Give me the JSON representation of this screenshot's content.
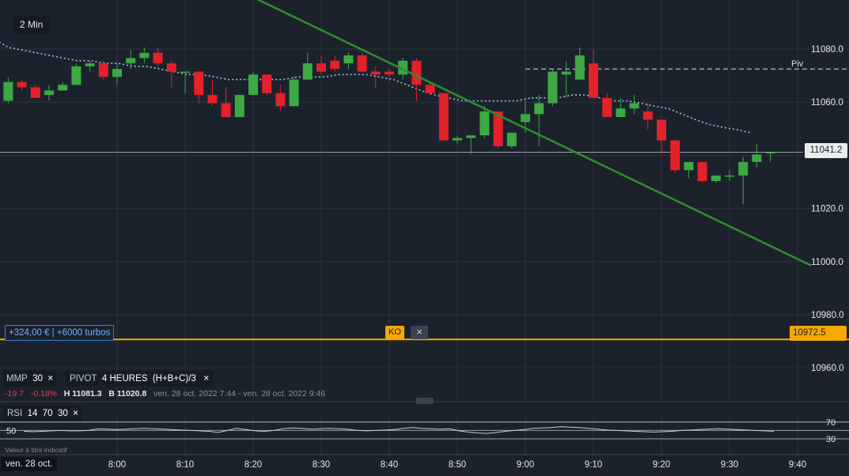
{
  "timeframe": "2 Min",
  "colors": {
    "up": "#3ea843",
    "down": "#e3212a",
    "ma": "#9cc3e6",
    "trend": "#2e8b30",
    "ko": "#f5a800"
  },
  "chart_data": {
    "type": "candlestick",
    "y_axis": {
      "ticks": [
        11080.0,
        11060.0,
        11040.0,
        11020.0,
        11000.0,
        10980.0,
        10960.0
      ],
      "tick_labels": [
        "11080.0",
        "11060.0",
        "",
        "11020.0",
        "11000.0",
        "10980.0",
        "10960.0"
      ],
      "range": [
        10950,
        11097
      ],
      "position": "right"
    },
    "x_axis": {
      "tick_labels": [
        "8:00",
        "8:10",
        "8:20",
        "8:30",
        "8:40",
        "8:50",
        "9:00",
        "9:10",
        "9:20",
        "9:30",
        "9:40"
      ],
      "start_label": "ven. 28 oct."
    },
    "candles": [
      {
        "t": "7:44",
        "o": 11060.5,
        "h": 11069.5,
        "l": 11059.6,
        "c": 11067.6
      },
      {
        "t": "7:46",
        "o": 11067.6,
        "h": 11068.5,
        "l": 11064.4,
        "c": 11065.6
      },
      {
        "t": "7:48",
        "o": 11065.6,
        "h": 11066.5,
        "l": 11061.6,
        "c": 11061.6
      },
      {
        "t": "7:50",
        "o": 11062.7,
        "h": 11066.5,
        "l": 11060.6,
        "c": 11064.4
      },
      {
        "t": "7:52",
        "o": 11064.4,
        "h": 11067.6,
        "l": 11064.4,
        "c": 11066.5
      },
      {
        "t": "7:54",
        "o": 11066.5,
        "h": 11074.6,
        "l": 11066.5,
        "c": 11073.5
      },
      {
        "t": "7:56",
        "o": 11073.5,
        "h": 11075.6,
        "l": 11071.5,
        "c": 11074.6
      },
      {
        "t": "7:58",
        "o": 11074.6,
        "h": 11075.6,
        "l": 11068.5,
        "c": 11069.5
      },
      {
        "t": "8:00",
        "o": 11069.5,
        "h": 11074.6,
        "l": 11066.5,
        "c": 11072.5
      },
      {
        "t": "8:02",
        "o": 11074.6,
        "h": 11079.6,
        "l": 11072.5,
        "c": 11076.6
      },
      {
        "t": "8:04",
        "o": 11076.6,
        "h": 11080.6,
        "l": 11074.6,
        "c": 11078.6
      },
      {
        "t": "8:06",
        "o": 11078.6,
        "h": 11080.6,
        "l": 11073.5,
        "c": 11074.6
      },
      {
        "t": "8:08",
        "o": 11074.6,
        "h": 11075.6,
        "l": 11065.6,
        "c": 11071.5
      },
      {
        "t": "8:10",
        "o": 11071.5,
        "h": 11071.5,
        "l": 11063.4,
        "c": 11071.5
      },
      {
        "t": "8:12",
        "o": 11071.5,
        "h": 11071.5,
        "l": 11059.6,
        "c": 11062.7
      },
      {
        "t": "8:14",
        "o": 11062.7,
        "h": 11068.5,
        "l": 11058.5,
        "c": 11059.6
      },
      {
        "t": "8:16",
        "o": 11059.6,
        "h": 11065.6,
        "l": 11054.4,
        "c": 11054.4
      },
      {
        "t": "8:18",
        "o": 11054.4,
        "h": 11062.7,
        "l": 11054.4,
        "c": 11062.7
      },
      {
        "t": "8:20",
        "o": 11062.7,
        "h": 11071.5,
        "l": 11062.7,
        "c": 11070.4
      },
      {
        "t": "8:22",
        "o": 11070.4,
        "h": 11070.4,
        "l": 11062.7,
        "c": 11063.4
      },
      {
        "t": "8:24",
        "o": 11063.4,
        "h": 11066.5,
        "l": 11056.5,
        "c": 11058.5
      },
      {
        "t": "8:26",
        "o": 11058.5,
        "h": 11069.5,
        "l": 11058.5,
        "c": 11068.5
      },
      {
        "t": "8:28",
        "o": 11068.5,
        "h": 11078.6,
        "l": 11068.5,
        "c": 11074.6
      },
      {
        "t": "8:30",
        "o": 11074.6,
        "h": 11077.6,
        "l": 11070.4,
        "c": 11071.5
      },
      {
        "t": "8:32",
        "o": 11075.6,
        "h": 11077.6,
        "l": 11071.5,
        "c": 11072.5
      },
      {
        "t": "8:34",
        "o": 11074.6,
        "h": 11078.6,
        "l": 11072.5,
        "c": 11077.6
      },
      {
        "t": "8:36",
        "o": 11077.6,
        "h": 11078.6,
        "l": 11071.5,
        "c": 11071.5
      },
      {
        "t": "8:38",
        "o": 11071.5,
        "h": 11073.5,
        "l": 11065.6,
        "c": 11070.4
      },
      {
        "t": "8:40",
        "o": 11071.5,
        "h": 11072.5,
        "l": 11067.6,
        "c": 11070.4
      },
      {
        "t": "8:42",
        "o": 11070.4,
        "h": 11076.6,
        "l": 11068.5,
        "c": 11075.6
      },
      {
        "t": "8:44",
        "o": 11075.6,
        "h": 11076.6,
        "l": 11060.5,
        "c": 11066.5
      },
      {
        "t": "8:46",
        "o": 11066.5,
        "h": 11067.6,
        "l": 11062.7,
        "c": 11063.4
      },
      {
        "t": "8:48",
        "o": 11063.4,
        "h": 11063.4,
        "l": 11045.6,
        "c": 11045.6
      },
      {
        "t": "8:50",
        "o": 11045.6,
        "h": 11047.5,
        "l": 11044.4,
        "c": 11046.5
      },
      {
        "t": "8:52",
        "o": 11046.5,
        "h": 11046.5,
        "l": 11040.3,
        "c": 11047.5
      },
      {
        "t": "8:54",
        "o": 11047.5,
        "h": 11058.5,
        "l": 11046.5,
        "c": 11056.5
      },
      {
        "t": "8:56",
        "o": 11056.5,
        "h": 11056.5,
        "l": 11042.5,
        "c": 11043.4
      },
      {
        "t": "8:58",
        "o": 11043.4,
        "h": 11048.5,
        "l": 11042.5,
        "c": 11048.5
      },
      {
        "t": "9:00",
        "o": 11052.5,
        "h": 11060.5,
        "l": 11048.5,
        "c": 11055.5
      },
      {
        "t": "9:02",
        "o": 11055.5,
        "h": 11062.7,
        "l": 11043.4,
        "c": 11059.6
      },
      {
        "t": "9:04",
        "o": 11059.6,
        "h": 11072.5,
        "l": 11058.5,
        "c": 11071.5
      },
      {
        "t": "9:06",
        "o": 11070.4,
        "h": 11075.6,
        "l": 11061.6,
        "c": 11071.5
      },
      {
        "t": "9:08",
        "o": 11068.5,
        "h": 11080.6,
        "l": 11068.5,
        "c": 11077.6
      },
      {
        "t": "9:10",
        "o": 11074.6,
        "h": 11079.6,
        "l": 11061.6,
        "c": 11061.6
      },
      {
        "t": "9:12",
        "o": 11061.6,
        "h": 11063.4,
        "l": 11054.4,
        "c": 11054.4
      },
      {
        "t": "9:14",
        "o": 11054.4,
        "h": 11061.6,
        "l": 11054.4,
        "c": 11057.6
      },
      {
        "t": "9:16",
        "o": 11057.6,
        "h": 11062.7,
        "l": 11055.5,
        "c": 11059.6
      },
      {
        "t": "9:18",
        "o": 11056.5,
        "h": 11059.6,
        "l": 11049.6,
        "c": 11053.4
      },
      {
        "t": "9:20",
        "o": 11053.4,
        "h": 11053.4,
        "l": 11040.3,
        "c": 11045.6
      },
      {
        "t": "9:22",
        "o": 11045.6,
        "h": 11045.6,
        "l": 11033.4,
        "c": 11034.4
      },
      {
        "t": "9:24",
        "o": 11034.4,
        "h": 11036.5,
        "l": 11031.4,
        "c": 11037.5
      },
      {
        "t": "9:26",
        "o": 11037.5,
        "h": 11037.5,
        "l": 11029.6,
        "c": 11030.3
      },
      {
        "t": "9:28",
        "o": 11030.3,
        "h": 11032.4,
        "l": 11029.6,
        "c": 11032.4
      },
      {
        "t": "9:30",
        "o": 11032.4,
        "h": 11034.4,
        "l": 11030.3,
        "c": 11032.4
      },
      {
        "t": "9:32",
        "o": 11032.4,
        "h": 11039.4,
        "l": 11021.5,
        "c": 11037.5
      },
      {
        "t": "9:34",
        "o": 11037.5,
        "h": 11044.4,
        "l": 11035.5,
        "c": 11040.3
      },
      {
        "t": "9:36",
        "o": 11041.2,
        "h": 11041.2,
        "l": 11037.5,
        "c": 11041.2
      }
    ],
    "moving_average": [
      11085.5,
      11083.6,
      11080.6,
      11079.6,
      11078.6,
      11077.6,
      11076.6,
      11075.6,
      11075.6,
      11074.6,
      11074.6,
      11073.5,
      11073.5,
      11072.5,
      11071.5,
      11070.4,
      11070.4,
      11069.5,
      11068.5,
      11068.5,
      11068.5,
      11068.5,
      11068.5,
      11069.5,
      11069.5,
      11069.5,
      11070.4,
      11070.4,
      11070.4,
      11069.5,
      11068.5,
      11066.5,
      11064.4,
      11062.7,
      11061.6,
      11060.5,
      11060.5,
      11060.5,
      11060.5,
      11060.5,
      11061.6,
      11061.6,
      11061.6,
      11062.7,
      11062.7,
      11061.6,
      11060.5,
      11060.5,
      11059.6,
      11058.5,
      11057.6,
      11055.5,
      11053.4,
      11051.6,
      11050.5,
      11049.6,
      11048.5
    ],
    "pivot": {
      "label": "Piv",
      "value": 11072.5
    },
    "last_price": {
      "label": "11041.2",
      "value": 11041.2
    },
    "ko_level": {
      "label": "10972.5",
      "value": 10972.5
    },
    "trendline": {
      "from": [
        "7:56",
        11129
      ],
      "to": [
        "9:42",
        10998.5
      ]
    }
  },
  "position": {
    "label": "+324,00 € | +6000 turbos",
    "ko_button": "KO",
    "close_icon": "×"
  },
  "indicators": {
    "mmp": {
      "name": "MMP",
      "value": "30",
      "close": "×"
    },
    "pivot": {
      "name": "PIVOT",
      "period": "4 HEURES",
      "formula": "(H+B+C)/3",
      "close": "×"
    },
    "stats": {
      "change": "-19.7",
      "change_pct": "-0.18%",
      "high": "H 11081.3",
      "low": "B 11020.8",
      "range": "ven. 28 oct. 2022 7:44 - ven. 28 oct. 2022 9:46"
    }
  },
  "rsi": {
    "name": "RSI",
    "p1": "14",
    "p2": "70",
    "p3": "30",
    "close": "×",
    "levels": [
      {
        "label": "70",
        "value": 70
      },
      {
        "label": "50",
        "value": 50
      },
      {
        "label": "30",
        "value": 30
      }
    ],
    "values": [
      48,
      47,
      48,
      49,
      50,
      49,
      49,
      50,
      54,
      53,
      52,
      53,
      54,
      55,
      54,
      53,
      52,
      51,
      50,
      49,
      48,
      45,
      50,
      55,
      52,
      49,
      48,
      50,
      54,
      56,
      55,
      53,
      54,
      55,
      54,
      53,
      50,
      49,
      50,
      51,
      52,
      55,
      57,
      55,
      54,
      53,
      54,
      49,
      46,
      44,
      43,
      45,
      48,
      50,
      52,
      55,
      56,
      57,
      59,
      58,
      57,
      55,
      53,
      51,
      50,
      49,
      48,
      47,
      46,
      47,
      48,
      50,
      51,
      52,
      53,
      54,
      53,
      52,
      51,
      50,
      49,
      48
    ],
    "note": "Valeur à titre indicatif"
  }
}
